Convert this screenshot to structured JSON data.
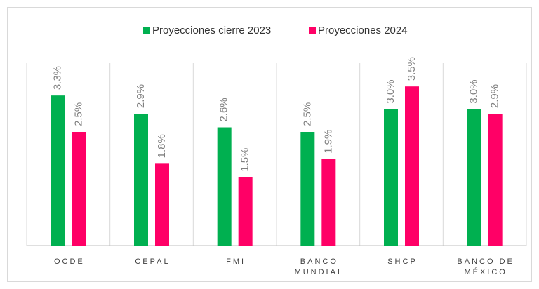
{
  "chart_data": {
    "type": "bar",
    "categories": [
      "OCDE",
      "CEPAL",
      "FMI",
      "BANCO MUNDIAL",
      "SHCP",
      "BANCO DE MÉXICO"
    ],
    "series": [
      {
        "name": "Proyecciones cierre 2023",
        "color": "#00b050",
        "values": [
          3.3,
          2.9,
          2.6,
          2.5,
          3.0,
          3.0
        ],
        "value_labels": [
          "3.3%",
          "2.9%",
          "2.6%",
          "2.5%",
          "3.0%",
          "3.0%"
        ]
      },
      {
        "name": "Proyecciones 2024",
        "color": "#ff0066",
        "values": [
          2.5,
          1.8,
          1.5,
          1.9,
          3.5,
          2.9
        ],
        "value_labels": [
          "2.5%",
          "1.8%",
          "1.5%",
          "1.9%",
          "3.5%",
          "2.9%"
        ]
      }
    ],
    "legend": "top"
  }
}
